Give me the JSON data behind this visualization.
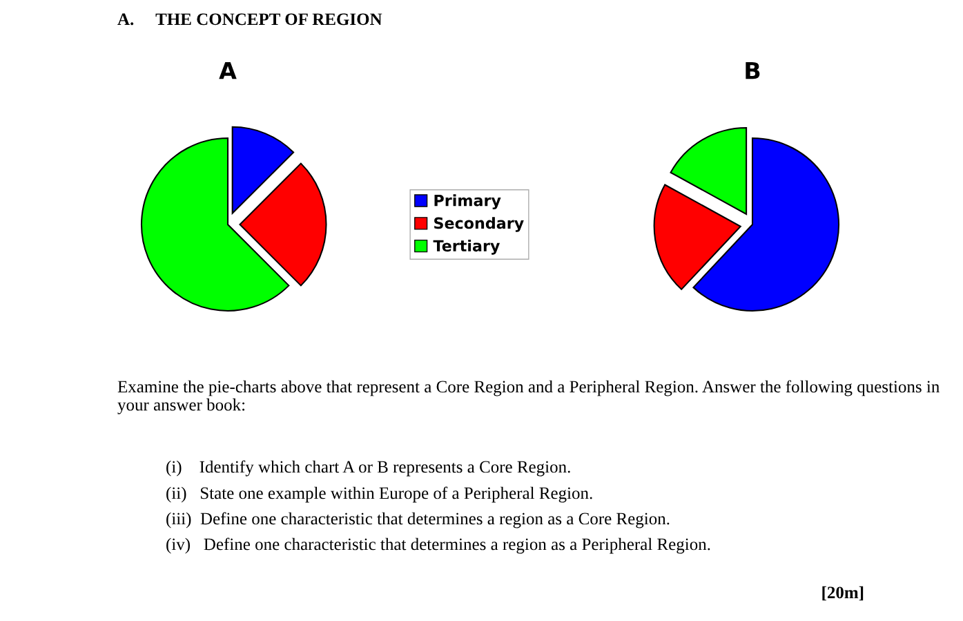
{
  "chart_data": [
    {
      "type": "pie",
      "title": "A",
      "categories": [
        "Primary",
        "Secondary",
        "Tertiary"
      ],
      "values": [
        12.5,
        25,
        62.5
      ],
      "colors": [
        "#0000ff",
        "#ff0000",
        "#00ff00"
      ],
      "legend": "right",
      "annotations": [
        "A.     THE CONCEPT OF REGION",
        "Examine the pie-charts above that represent a Core Region and a Peripheral Region. Answer the following questions in your answer book:",
        "(i)    Identify which chart A or B represents a Core Region.",
        "(ii)   State one example within Europe of a Peripheral Region.",
        "(iii)  Define one characteristic that determines a region as a Core Region.",
        "(iv)   Define one characteristic that determines a region as a Peripheral Region.",
        "[20m]"
      ]
    },
    {
      "type": "pie",
      "title": "B",
      "categories": [
        null,
        null,
        null
      ],
      "values": [
        62,
        21,
        17
      ],
      "colors": [
        "#0000ff",
        "#ff0000",
        "#00ff00"
      ]
    }
  ]
}
